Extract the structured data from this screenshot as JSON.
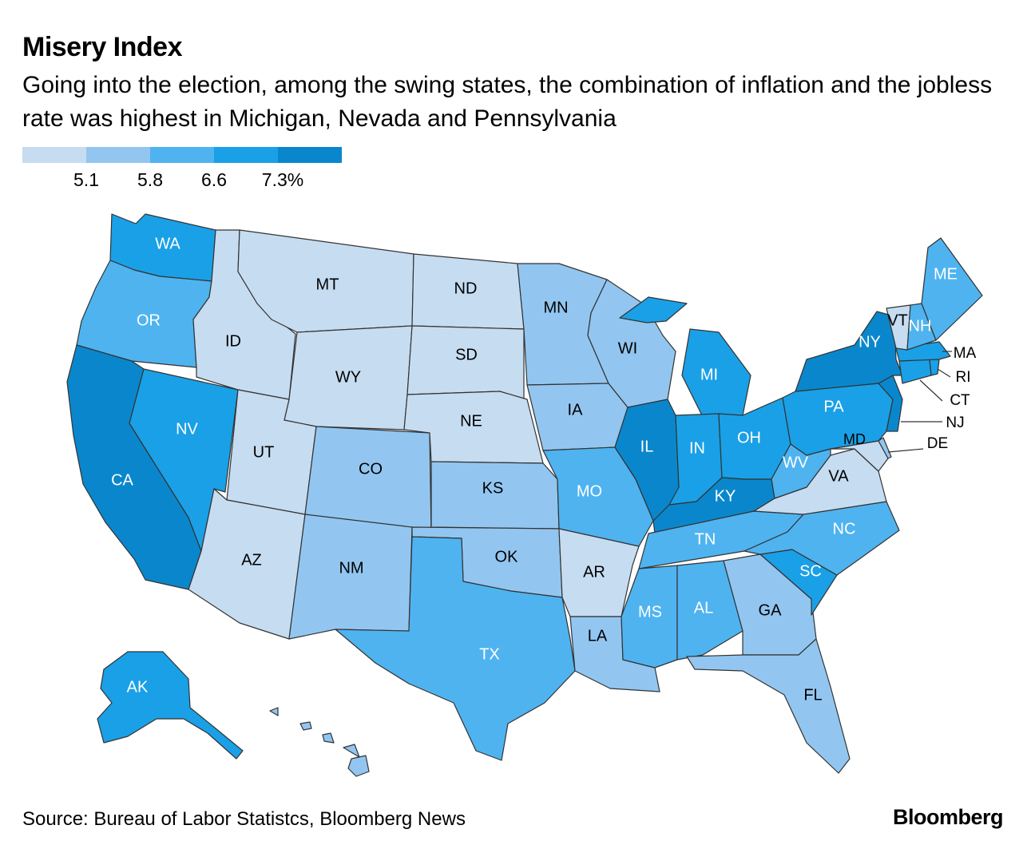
{
  "title": "Misery Index",
  "subtitle": "Going into the election, among the swing states, the combination of inflation and the jobless rate was highest in Michigan, Nevada and Pennsylvania",
  "legend": {
    "bins": [
      {
        "color": "#c6dcf1"
      },
      {
        "color": "#92c6f0"
      },
      {
        "color": "#4fb3f0"
      },
      {
        "color": "#1aa0e6"
      },
      {
        "color": "#0a87cc"
      }
    ],
    "breaks": [
      "5.1",
      "5.8",
      "6.6",
      "7.3%"
    ]
  },
  "states": [
    {
      "abbr": "WA",
      "bin": 3
    },
    {
      "abbr": "OR",
      "bin": 2
    },
    {
      "abbr": "CA",
      "bin": 4
    },
    {
      "abbr": "NV",
      "bin": 3
    },
    {
      "abbr": "ID",
      "bin": 0
    },
    {
      "abbr": "MT",
      "bin": 0
    },
    {
      "abbr": "WY",
      "bin": 0
    },
    {
      "abbr": "UT",
      "bin": 0
    },
    {
      "abbr": "AZ",
      "bin": 0
    },
    {
      "abbr": "CO",
      "bin": 1
    },
    {
      "abbr": "NM",
      "bin": 1
    },
    {
      "abbr": "ND",
      "bin": 0
    },
    {
      "abbr": "SD",
      "bin": 0
    },
    {
      "abbr": "NE",
      "bin": 0
    },
    {
      "abbr": "KS",
      "bin": 1
    },
    {
      "abbr": "OK",
      "bin": 1
    },
    {
      "abbr": "TX",
      "bin": 2
    },
    {
      "abbr": "MN",
      "bin": 1
    },
    {
      "abbr": "IA",
      "bin": 1
    },
    {
      "abbr": "MO",
      "bin": 2
    },
    {
      "abbr": "AR",
      "bin": 0
    },
    {
      "abbr": "LA",
      "bin": 1
    },
    {
      "abbr": "WI",
      "bin": 1
    },
    {
      "abbr": "IL",
      "bin": 4
    },
    {
      "abbr": "MI",
      "bin": 3
    },
    {
      "abbr": "IN",
      "bin": 3
    },
    {
      "abbr": "OH",
      "bin": 3
    },
    {
      "abbr": "KY",
      "bin": 4
    },
    {
      "abbr": "TN",
      "bin": 2
    },
    {
      "abbr": "MS",
      "bin": 2
    },
    {
      "abbr": "AL",
      "bin": 2
    },
    {
      "abbr": "GA",
      "bin": 1
    },
    {
      "abbr": "FL",
      "bin": 1
    },
    {
      "abbr": "SC",
      "bin": 3
    },
    {
      "abbr": "NC",
      "bin": 2
    },
    {
      "abbr": "VA",
      "bin": 0
    },
    {
      "abbr": "WV",
      "bin": 2
    },
    {
      "abbr": "PA",
      "bin": 3
    },
    {
      "abbr": "NY",
      "bin": 4
    },
    {
      "abbr": "VT",
      "bin": 0
    },
    {
      "abbr": "NH",
      "bin": 2
    },
    {
      "abbr": "ME",
      "bin": 2
    },
    {
      "abbr": "MA",
      "bin": 3
    },
    {
      "abbr": "RI",
      "bin": 3
    },
    {
      "abbr": "CT",
      "bin": 3
    },
    {
      "abbr": "NJ",
      "bin": 4
    },
    {
      "abbr": "DE",
      "bin": 1
    },
    {
      "abbr": "MD",
      "bin": 0
    },
    {
      "abbr": "AK",
      "bin": 3
    },
    {
      "abbr": "HI",
      "bin": 1
    }
  ],
  "source": "Source: Bureau of Labor Statistcs, Bloomberg News",
  "brand": "Bloomberg"
}
